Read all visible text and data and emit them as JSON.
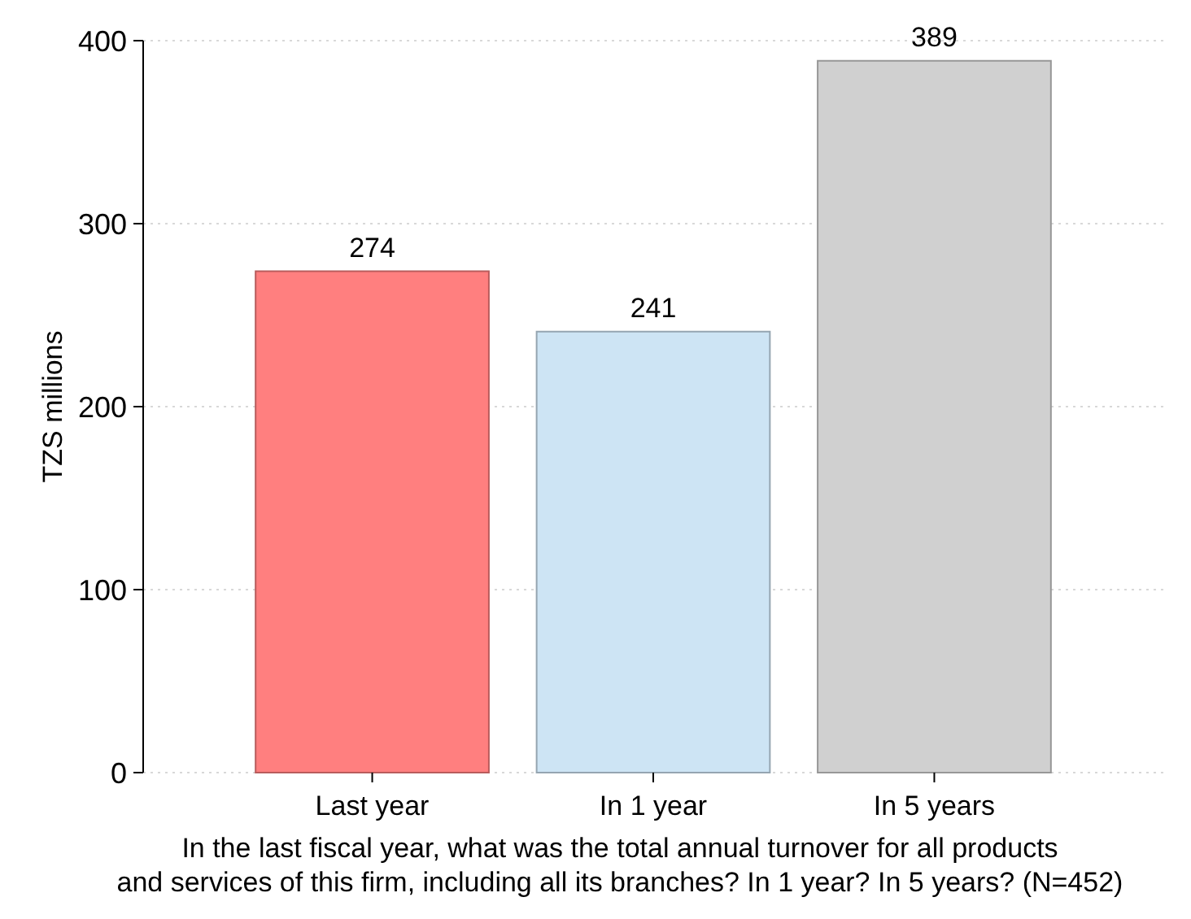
{
  "chart_data": {
    "type": "bar",
    "categories": [
      "Last year",
      "In 1 year",
      "In 5 years"
    ],
    "values": [
      274,
      241,
      389
    ],
    "colors": [
      "#ff7f7f",
      "#cde4f4",
      "#d0d0d0"
    ],
    "ylabel": "TZS millions",
    "xlabel": "In the last fiscal year, what was the total annual turnover for all products\nand services of this firm, including all its branches? In 1 year? In 5 years? (N=452)",
    "ylim": [
      0,
      400
    ],
    "yticks": [
      0,
      100,
      200,
      300,
      400
    ],
    "grid": "y",
    "data_labels": true
  }
}
